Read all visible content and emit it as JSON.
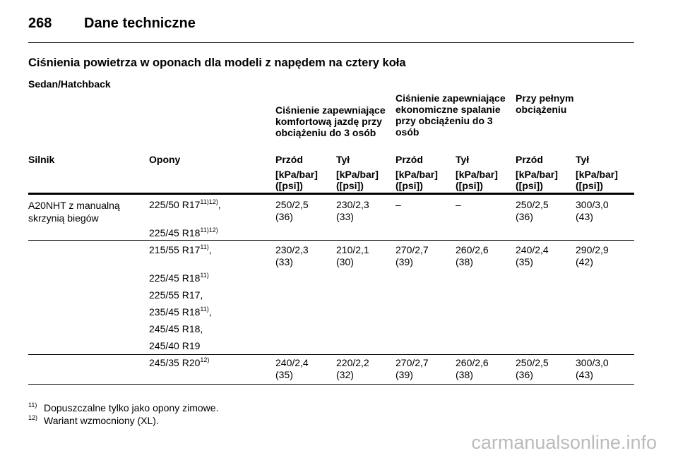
{
  "header": {
    "page": "268",
    "title": "Dane techniczne"
  },
  "section_title": "Ciśnienia powietrza w oponach dla modeli z napędem na cztery koła",
  "subtitle": "Sedan/Hatchback",
  "table": {
    "group_headers": [
      "Ciśnienie zapewniające komfortową jazdę przy obciążeniu do 3 osób",
      "Ciśnienie zapewniające ekonomiczne spalanie przy obciążeniu do 3 osób",
      "Przy pełnym obciążeniu"
    ],
    "columns": [
      "Silnik",
      "Opony",
      "Przód",
      "Tył",
      "Przód",
      "Tył",
      "Przód",
      "Tył"
    ],
    "units": [
      "[kPa/bar] ([psi])",
      "[kPa/bar] ([psi])",
      "[kPa/bar] ([psi])",
      "[kPa/bar] ([psi])",
      "[kPa/bar] ([psi])",
      "[kPa/bar] ([psi])"
    ],
    "rows": [
      {
        "engine": "A20NHT z manualną skrzynią biegów",
        "tires": [
          {
            "size": "225/50 R17",
            "notes": "11)12)",
            "sep": ","
          },
          {
            "size": "225/45 R18",
            "notes": "11)12)"
          }
        ],
        "values": [
          {
            "main": "250/2,5",
            "psi": "(36)"
          },
          {
            "main": "230/2,3",
            "psi": "(33)"
          },
          {
            "main": "–"
          },
          {
            "main": "–"
          },
          {
            "main": "250/2,5",
            "psi": "(36)"
          },
          {
            "main": "300/3,0",
            "psi": "(43)"
          }
        ]
      },
      {
        "tires": [
          {
            "size": "215/55 R17",
            "notes": "11)",
            "sep": ","
          },
          {
            "size": "225/45 R18",
            "notes": "11)"
          },
          {
            "size": "225/55 R17",
            "sep": ","
          },
          {
            "size": "235/45 R18",
            "notes": "11)",
            "sep": ","
          },
          {
            "size": "245/45 R18",
            "sep": ","
          },
          {
            "size": "245/40 R19"
          }
        ],
        "values": [
          {
            "main": "230/2,3",
            "psi": "(33)"
          },
          {
            "main": "210/2,1",
            "psi": "(30)"
          },
          {
            "main": "270/2,7",
            "psi": "(39)"
          },
          {
            "main": "260/2,6",
            "psi": "(38)"
          },
          {
            "main": "240/2,4",
            "psi": "(35)"
          },
          {
            "main": "290/2,9",
            "psi": "(42)"
          }
        ]
      },
      {
        "tires": [
          {
            "size": "245/35 R20",
            "notes": "12)"
          }
        ],
        "values": [
          {
            "main": "240/2,4",
            "psi": "(35)"
          },
          {
            "main": "220/2,2",
            "psi": "(32)"
          },
          {
            "main": "270/2,7",
            "psi": "(39)"
          },
          {
            "main": "260/2,6",
            "psi": "(38)"
          },
          {
            "main": "250/2,5",
            "psi": "(36)"
          },
          {
            "main": "300/3,0",
            "psi": "(43)"
          }
        ]
      }
    ]
  },
  "footnotes": [
    {
      "mark": "11)",
      "text": "Dopuszczalne tylko jako opony zimowe."
    },
    {
      "mark": "12)",
      "text": "Wariant wzmocniony (XL)."
    }
  ],
  "watermark": "carmanualsonline.info"
}
